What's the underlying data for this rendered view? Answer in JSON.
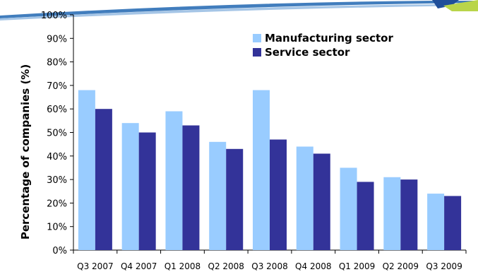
{
  "colors": {
    "manufacturing": "#99ccff",
    "service": "#333399",
    "header_blue": "#2c6fb6",
    "header_green": "#b9d54a"
  },
  "chart_data": {
    "type": "bar",
    "title": "",
    "xlabel": "",
    "ylabel": "Percentage of companies (%)",
    "ylim": [
      0,
      100
    ],
    "yticks": [
      "0%",
      "10%",
      "20%",
      "30%",
      "40%",
      "50%",
      "60%",
      "70%",
      "80%",
      "90%",
      "100%"
    ],
    "grid": false,
    "legend_position": "top-right",
    "categories": [
      "Q3 2007",
      "Q4 2007",
      "Q1 2008",
      "Q2 2008",
      "Q3 2008",
      "Q4 2008",
      "Q1 2009",
      "Q2 2009",
      "Q3 2009"
    ],
    "series": [
      {
        "name": "Manufacturing sector",
        "color": "#99ccff",
        "values": [
          68,
          54,
          59,
          46,
          68,
          44,
          35,
          31,
          24
        ]
      },
      {
        "name": "Service sector",
        "color": "#333399",
        "values": [
          60,
          50,
          53,
          43,
          47,
          41,
          29,
          30,
          23
        ]
      }
    ]
  }
}
